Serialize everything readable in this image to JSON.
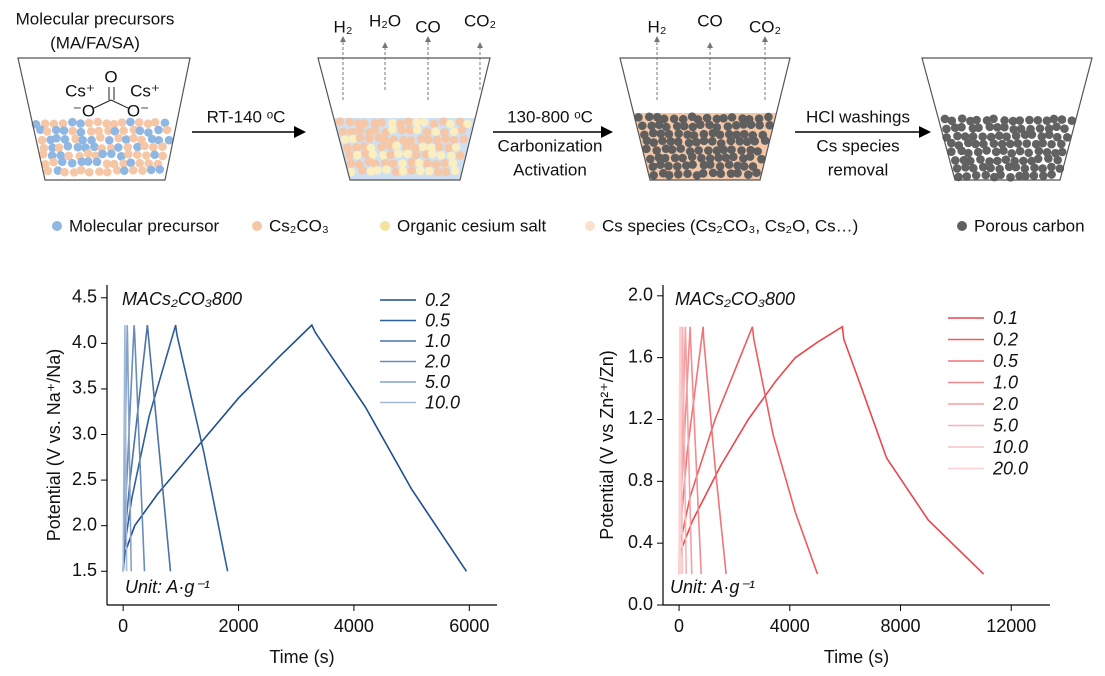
{
  "schematic": {
    "start_label": [
      "Molecular precursors",
      "(MA/FA/SA)"
    ],
    "molecule": {
      "cation1": "Cs⁺",
      "cation2": "Cs⁺",
      "o_top": "O",
      "anion1": "⁻O",
      "anion2": "O⁻"
    },
    "steps": [
      [
        "RT-140 ᵒC"
      ],
      [
        "130-800 ᵒC",
        "Carbonization",
        "Activation"
      ],
      [
        "HCl washings",
        "Cs species",
        "removal"
      ]
    ],
    "gases": [
      [
        "H₂",
        "H₂O",
        "CO",
        "CO₂"
      ],
      [
        "H₂",
        "CO",
        "CO₂"
      ]
    ],
    "legend": [
      "Molecular precursor",
      "Cs₂CO₃",
      "Organic cesium salt",
      "Cs species (Cs₂CO₃, Cs₂O, Cs…)",
      "Porous carbon"
    ]
  },
  "chart_data": [
    {
      "type": "line",
      "annotation": "MACs₂CO₃800",
      "unit_label": "Unit: A·g⁻¹",
      "xlabel": "Time (s)",
      "ylabel": "Potential (V vs. Na⁺/Na)",
      "legend": "upper right",
      "xlim": [
        -280,
        6480
      ],
      "ylim": [
        1.13,
        4.64
      ],
      "xticks": [
        0,
        2000,
        4000,
        6000
      ],
      "yticks": [
        1.5,
        {
          "value": 2,
          "label": "2.0"
        },
        2.5,
        {
          "value": 3,
          "label": "3.0"
        },
        3.5,
        {
          "value": 4,
          "label": "4.0"
        },
        4.5
      ],
      "series": [
        {
          "name": "0.2",
          "color": "#1f4e8c",
          "x": [
            0,
            30,
            200,
            600,
            1200,
            2000,
            2700,
            3270,
            3330,
            4200,
            5000,
            5950
          ],
          "values": [
            1.5,
            1.7,
            2.0,
            2.35,
            2.8,
            3.4,
            3.85,
            4.2,
            4.12,
            3.3,
            2.4,
            1.5
          ]
        },
        {
          "name": "0.5",
          "color": "#2f5f98",
          "x": [
            0,
            20,
            150,
            450,
            910,
            930,
            1400,
            1810
          ],
          "values": [
            1.5,
            1.75,
            2.3,
            3.2,
            4.2,
            4.1,
            2.8,
            1.5
          ]
        },
        {
          "name": "1.0",
          "color": "#4a74a8",
          "x": [
            0,
            15,
            120,
            420,
            435,
            820
          ],
          "values": [
            1.5,
            1.8,
            2.5,
            4.2,
            4.1,
            1.5
          ]
        },
        {
          "name": "2.0",
          "color": "#6a8cba",
          "x": [
            0,
            10,
            190,
            200,
            370
          ],
          "values": [
            1.5,
            1.8,
            4.2,
            4.1,
            1.5
          ]
        },
        {
          "name": "5.0",
          "color": "#86a2c9",
          "x": [
            0,
            70,
            75,
            140
          ],
          "values": [
            1.5,
            4.2,
            4.1,
            1.5
          ]
        },
        {
          "name": "10.0",
          "color": "#a3b9d8",
          "x": [
            0,
            30,
            32,
            60
          ],
          "values": [
            1.5,
            4.2,
            4.1,
            1.5
          ]
        }
      ]
    },
    {
      "type": "line",
      "annotation": "MACs₂CO₃800",
      "unit_label": "Unit: A·g⁻¹",
      "xlabel": "Time (s)",
      "ylabel": "Potential (V vs Zn²⁺/Zn)",
      "legend": "upper right",
      "xlim": [
        -580,
        13400
      ],
      "ylim": [
        0,
        2.07
      ],
      "xticks": [
        0,
        4000,
        8000,
        12000
      ],
      "yticks": [
        {
          "value": 0,
          "label": "0.0"
        },
        0.4,
        0.8,
        1.2,
        1.6,
        {
          "value": 2,
          "label": "2.0"
        }
      ],
      "series": [
        {
          "name": "0.1",
          "color": "#e8474b",
          "x": [
            0,
            60,
            500,
            1500,
            2500,
            3500,
            4200,
            5000,
            5900,
            5950,
            6500,
            7500,
            9000,
            11000
          ],
          "values": [
            0.2,
            0.35,
            0.55,
            0.9,
            1.2,
            1.45,
            1.6,
            1.7,
            1.8,
            1.72,
            1.45,
            0.95,
            0.55,
            0.2
          ]
        },
        {
          "name": "0.2",
          "color": "#ec5c5f",
          "x": [
            0,
            40,
            400,
            1300,
            2200,
            2650,
            2700,
            3400,
            4200,
            5000
          ],
          "values": [
            0.2,
            0.4,
            0.7,
            1.2,
            1.6,
            1.8,
            1.72,
            1.1,
            0.6,
            0.2
          ]
        },
        {
          "name": "0.5",
          "color": "#f07478",
          "x": [
            0,
            30,
            300,
            870,
            890,
            1300,
            1700
          ],
          "values": [
            0.2,
            0.45,
            1.0,
            1.8,
            1.72,
            0.9,
            0.2
          ]
        },
        {
          "name": "1.0",
          "color": "#f38b8e",
          "x": [
            0,
            20,
            400,
            415,
            800
          ],
          "values": [
            0.2,
            0.5,
            1.8,
            1.72,
            0.2
          ]
        },
        {
          "name": "2.0",
          "color": "#f5a0a2",
          "x": [
            0,
            230,
            240,
            460
          ],
          "values": [
            0.2,
            1.8,
            1.72,
            0.2
          ]
        },
        {
          "name": "5.0",
          "color": "#f7b3b4",
          "x": [
            0,
            130,
            135,
            260
          ],
          "values": [
            0.2,
            1.8,
            1.72,
            0.2
          ]
        },
        {
          "name": "10.0",
          "color": "#f9c4c5",
          "x": [
            0,
            60,
            64,
            120
          ],
          "values": [
            0.2,
            1.8,
            1.72,
            0.2
          ]
        },
        {
          "name": "20.0",
          "color": "#fbd3d4",
          "x": [
            0,
            25,
            27,
            50
          ],
          "values": [
            0.2,
            1.8,
            1.72,
            0.2
          ]
        }
      ]
    }
  ]
}
